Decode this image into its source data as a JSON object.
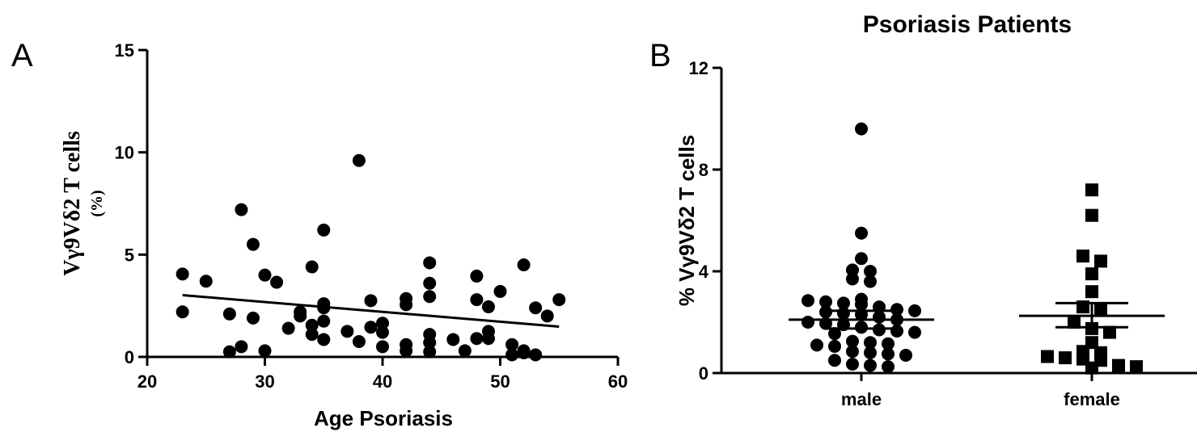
{
  "chart_data": [
    {
      "type": "scatter",
      "panel_label": "A",
      "title": "",
      "xlabel": "Age Psoriasis",
      "ylabel_main": "Vγ9Vδ2 T cells",
      "ylabel_unit": "(%)",
      "xlim": [
        20,
        60
      ],
      "ylim": [
        0,
        15
      ],
      "xticks": [
        "20",
        "30",
        "40",
        "50",
        "60"
      ],
      "yticks": [
        "0",
        "5",
        "10",
        "15"
      ],
      "grid": false,
      "marker": "circle",
      "color": "#000000",
      "points": [
        {
          "x": 23,
          "y": 4.05
        },
        {
          "x": 23,
          "y": 2.2
        },
        {
          "x": 25,
          "y": 3.7
        },
        {
          "x": 27,
          "y": 2.1
        },
        {
          "x": 27,
          "y": 0.25
        },
        {
          "x": 28,
          "y": 7.2
        },
        {
          "x": 28,
          "y": 0.5
        },
        {
          "x": 29,
          "y": 5.5
        },
        {
          "x": 29,
          "y": 1.9
        },
        {
          "x": 30,
          "y": 4.0
        },
        {
          "x": 30,
          "y": 0.3
        },
        {
          "x": 31,
          "y": 3.65
        },
        {
          "x": 32,
          "y": 1.4
        },
        {
          "x": 33,
          "y": 2.2
        },
        {
          "x": 33,
          "y": 2.0
        },
        {
          "x": 34,
          "y": 4.4
        },
        {
          "x": 34,
          "y": 1.55
        },
        {
          "x": 34,
          "y": 1.1
        },
        {
          "x": 35,
          "y": 6.2
        },
        {
          "x": 35,
          "y": 2.6
        },
        {
          "x": 35,
          "y": 2.4
        },
        {
          "x": 35,
          "y": 1.75
        },
        {
          "x": 35,
          "y": 0.85
        },
        {
          "x": 37,
          "y": 1.25
        },
        {
          "x": 38,
          "y": 9.6
        },
        {
          "x": 38,
          "y": 0.75
        },
        {
          "x": 39,
          "y": 2.75
        },
        {
          "x": 39,
          "y": 1.45
        },
        {
          "x": 40,
          "y": 1.65
        },
        {
          "x": 40,
          "y": 1.2
        },
        {
          "x": 40,
          "y": 0.5
        },
        {
          "x": 42,
          "y": 2.85
        },
        {
          "x": 42,
          "y": 2.55
        },
        {
          "x": 42,
          "y": 0.6
        },
        {
          "x": 42,
          "y": 0.3
        },
        {
          "x": 44,
          "y": 4.6
        },
        {
          "x": 44,
          "y": 3.6
        },
        {
          "x": 44,
          "y": 2.95
        },
        {
          "x": 44,
          "y": 1.1
        },
        {
          "x": 44,
          "y": 0.7
        },
        {
          "x": 44,
          "y": 0.25
        },
        {
          "x": 46,
          "y": 0.85
        },
        {
          "x": 47,
          "y": 0.3
        },
        {
          "x": 48,
          "y": 3.95
        },
        {
          "x": 48,
          "y": 2.8
        },
        {
          "x": 48,
          "y": 0.9
        },
        {
          "x": 49,
          "y": 2.45
        },
        {
          "x": 49,
          "y": 1.25
        },
        {
          "x": 49,
          "y": 0.9
        },
        {
          "x": 50,
          "y": 3.2
        },
        {
          "x": 51,
          "y": 0.6
        },
        {
          "x": 51,
          "y": 0.1
        },
        {
          "x": 52,
          "y": 4.5
        },
        {
          "x": 52,
          "y": 0.3
        },
        {
          "x": 52,
          "y": 0.2
        },
        {
          "x": 53,
          "y": 2.4
        },
        {
          "x": 53,
          "y": 0.1
        },
        {
          "x": 54,
          "y": 2.0
        },
        {
          "x": 55,
          "y": 2.8
        }
      ],
      "regression_line": {
        "x": [
          23,
          55
        ],
        "y": [
          3.02,
          1.48
        ]
      }
    },
    {
      "type": "scatter",
      "panel_label": "B",
      "title": "Psoriasis Patients",
      "xlabel": "",
      "ylabel": "% Vγ9Vδ2 T cells",
      "categories": [
        "male",
        "female"
      ],
      "ylim": [
        0,
        12
      ],
      "yticks": [
        "0",
        "4",
        "8",
        "12"
      ],
      "grid": false,
      "color": "#000000",
      "series": [
        {
          "name": "male",
          "marker": "circle",
          "values": [
            9.6,
            5.5,
            4.5,
            4.05,
            4.0,
            3.7,
            3.6,
            2.9,
            2.85,
            2.8,
            2.75,
            2.7,
            2.6,
            2.5,
            2.45,
            2.4,
            2.35,
            2.3,
            2.2,
            2.1,
            2.0,
            1.95,
            1.9,
            1.8,
            1.7,
            1.65,
            1.6,
            1.55,
            1.25,
            1.2,
            1.15,
            1.1,
            1.05,
            0.85,
            0.8,
            0.75,
            0.7,
            0.5,
            0.35,
            0.3,
            0.25
          ],
          "mean": 2.1,
          "sem": [
            1.75,
            2.45
          ]
        },
        {
          "name": "female",
          "marker": "square",
          "values": [
            7.2,
            6.2,
            4.6,
            4.4,
            3.9,
            3.2,
            2.6,
            2.5,
            2.0,
            1.75,
            1.6,
            1.2,
            0.85,
            0.8,
            0.65,
            0.6,
            0.55,
            0.5,
            0.3,
            0.25,
            0.2
          ],
          "mean": 2.25,
          "sem": [
            1.8,
            2.75
          ]
        }
      ]
    }
  ]
}
